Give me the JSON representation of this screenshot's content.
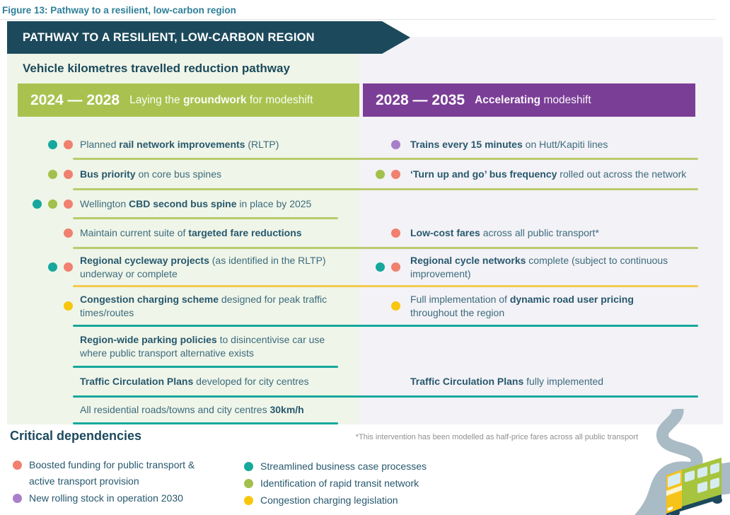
{
  "figure_caption": "Figure 13: Pathway to a resilient, low-carbon region",
  "banner_title": "PATHWAY TO A RESILIENT, LOW-CARBON REGION",
  "subtitle": "Vehicle kilometres travelled reduction pathway",
  "columns": {
    "left": {
      "period": "2024 — 2028",
      "tagline_segments": [
        {
          "text": "Laying the ",
          "bold": false
        },
        {
          "text": "groundwork",
          "bold": true
        },
        {
          "text": " for modeshift",
          "bold": false
        }
      ],
      "color": "#a9c24f"
    },
    "right": {
      "period": "2028 — 2035",
      "tagline_segments": [
        {
          "text": "Accelerating",
          "bold": true
        },
        {
          "text": " modeshift",
          "bold": false
        }
      ],
      "color": "#7b3e97"
    }
  },
  "dot_colors": {
    "teal": "#16a89d",
    "green": "#a2c04c",
    "salmon": "#f0806f",
    "yellow": "#f8c60d",
    "purple": "#a87fc8"
  },
  "separator_colors": {
    "green": "#b9cb6d",
    "yellow": "#f3ca4f",
    "teal": "#16a89d"
  },
  "rows": [
    {
      "left": {
        "dots": [
          "teal",
          "salmon"
        ],
        "segments": [
          {
            "text": "Planned ",
            "bold": false
          },
          {
            "text": "rail network improvements",
            "bold": true
          },
          {
            "text": " (RLTP)",
            "bold": false
          }
        ]
      },
      "right": {
        "dots": [
          "purple"
        ],
        "segments": [
          {
            "text": "Trains every 15 minutes",
            "bold": true
          },
          {
            "text": " on Hutt/Kapiti lines",
            "bold": false
          }
        ]
      },
      "separator": {
        "color": "green",
        "span": "full"
      }
    },
    {
      "left": {
        "dots": [
          "green",
          "salmon"
        ],
        "segments": [
          {
            "text": "Bus priority",
            "bold": true
          },
          {
            "text": " on core bus spines",
            "bold": false
          }
        ]
      },
      "right": {
        "dots": [
          "green",
          "salmon"
        ],
        "segments": [
          {
            "text": "‘Turn up and go’ bus frequency",
            "bold": true
          },
          {
            "text": " rolled out across the network",
            "bold": false
          }
        ]
      },
      "separator": {
        "color": "green",
        "span": "full"
      }
    },
    {
      "left": {
        "dots": [
          "teal",
          "green",
          "salmon"
        ],
        "segments": [
          {
            "text": "Wellington ",
            "bold": false
          },
          {
            "text": "CBD second bus spine",
            "bold": true
          },
          {
            "text": " in place by 2025",
            "bold": false
          }
        ]
      },
      "right": {
        "dots": [],
        "segments": []
      },
      "separator": {
        "color": "green",
        "span": "left"
      }
    },
    {
      "left": {
        "dots": [
          "salmon"
        ],
        "segments": [
          {
            "text": "Maintain current suite of ",
            "bold": false
          },
          {
            "text": "targeted fare reductions",
            "bold": true
          }
        ]
      },
      "right": {
        "dots": [
          "salmon"
        ],
        "segments": [
          {
            "text": "Low-cost fares",
            "bold": true
          },
          {
            "text": " across all public transport*",
            "bold": false
          }
        ]
      },
      "separator": {
        "color": "green",
        "span": "full"
      }
    },
    {
      "left": {
        "dots": [
          "teal",
          "salmon"
        ],
        "segments": [
          {
            "text": "Regional cycleway projects",
            "bold": true
          },
          {
            "text": " (as identified in the RLTP) underway or complete",
            "bold": false
          }
        ]
      },
      "right": {
        "dots": [
          "teal",
          "salmon"
        ],
        "segments": [
          {
            "text": "Regional cycle networks",
            "bold": true
          },
          {
            "text": " complete (subject to continuous improvement)",
            "bold": false
          }
        ]
      },
      "separator": {
        "color": "yellow",
        "span": "full"
      }
    },
    {
      "left": {
        "dots": [
          "yellow"
        ],
        "segments": [
          {
            "text": "Congestion charging scheme",
            "bold": true
          },
          {
            "text": " designed for peak traffic times/routes",
            "bold": false
          }
        ]
      },
      "right": {
        "dots": [
          "yellow"
        ],
        "segments": [
          {
            "text": "Full implementation of ",
            "bold": false
          },
          {
            "text": "dynamic road user pricing",
            "bold": true
          },
          {
            "br": true
          },
          {
            "text": "throughout the region",
            "bold": false
          }
        ]
      },
      "separator": {
        "color": "teal",
        "span": "full"
      }
    },
    {
      "left": {
        "dots": [],
        "segments": [
          {
            "text": "Region-wide parking policies",
            "bold": true
          },
          {
            "text": " to disincentivise car use where public transport alternative exists",
            "bold": false
          }
        ]
      },
      "right": {
        "dots": [],
        "segments": []
      },
      "separator": {
        "color": "teal",
        "span": "left"
      }
    },
    {
      "left": {
        "dots": [],
        "segments": [
          {
            "text": "Traffic Circulation Plans",
            "bold": true
          },
          {
            "text": " developed for city centres",
            "bold": false
          }
        ]
      },
      "right": {
        "dots": [],
        "segments": [
          {
            "text": "Traffic Circulation Plans",
            "bold": true
          },
          {
            "text": " fully implemented",
            "bold": false
          }
        ]
      },
      "separator": {
        "color": "teal",
        "span": "full"
      }
    },
    {
      "left": {
        "dots": [],
        "segments": [
          {
            "text": "All residential roads/towns and city centres ",
            "bold": false
          },
          {
            "text": "30km/h",
            "bold": true
          }
        ]
      },
      "right": {
        "dots": [],
        "segments": []
      },
      "separator": {
        "color": "teal",
        "span": "left"
      }
    }
  ],
  "footnote": "*This intervention has been modelled as half-price fares across all public transport",
  "dependencies": {
    "title": "Critical dependencies",
    "columns": [
      [
        {
          "dot": "salmon",
          "label": "Boosted funding for public transport & active transport provision"
        },
        {
          "dot": "purple",
          "label": "New rolling stock in operation 2030"
        }
      ],
      [
        {
          "dot": "teal",
          "label": "Streamlined business case processes"
        },
        {
          "dot": "green",
          "label": "Identification of rapid transit network"
        },
        {
          "dot": "yellow",
          "label": "Congestion charging legislation"
        }
      ]
    ]
  },
  "illustration": {
    "name": "bus-on-winding-road",
    "road_color": "#a9bbc4",
    "bus_green": "#a7c43e",
    "bus_yellow": "#f6c319"
  }
}
